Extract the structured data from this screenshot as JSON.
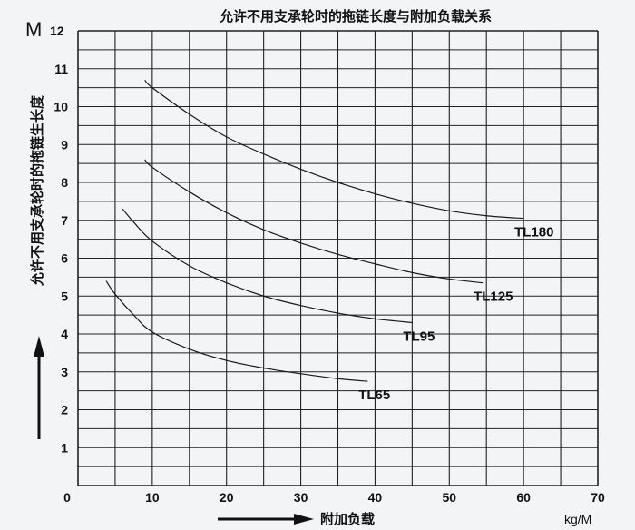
{
  "chart_data": {
    "type": "line",
    "title": "允许不用支承轮时的拖链长度与附加负载关系",
    "xlabel": "附加负载",
    "ylabel": "允许不用支承轮时的拖链生长度",
    "x_unit": "kg/M",
    "y_unit": "M",
    "xlim": [
      0,
      70
    ],
    "ylim": [
      0,
      12
    ],
    "x_ticks": [
      0,
      10,
      20,
      30,
      40,
      50,
      60,
      70
    ],
    "y_ticks": [
      1,
      2,
      3,
      4,
      5,
      6,
      7,
      8,
      9,
      10,
      11,
      12
    ],
    "grid": true,
    "series": [
      {
        "name": "TL65",
        "points": [
          [
            3.8,
            5.4
          ],
          [
            5,
            5.05
          ],
          [
            7.5,
            4.5
          ],
          [
            10,
            4.05
          ],
          [
            15,
            3.6
          ],
          [
            20,
            3.3
          ],
          [
            25,
            3.1
          ],
          [
            30,
            2.95
          ],
          [
            35,
            2.82
          ],
          [
            39,
            2.75
          ]
        ]
      },
      {
        "name": "TL95",
        "points": [
          [
            6,
            7.3
          ],
          [
            7.5,
            6.95
          ],
          [
            10,
            6.45
          ],
          [
            15,
            5.8
          ],
          [
            20,
            5.35
          ],
          [
            25,
            5.0
          ],
          [
            30,
            4.75
          ],
          [
            35,
            4.55
          ],
          [
            40,
            4.4
          ],
          [
            45,
            4.3
          ]
        ]
      },
      {
        "name": "TL125",
        "points": [
          [
            9,
            8.6
          ],
          [
            10,
            8.4
          ],
          [
            15,
            7.75
          ],
          [
            20,
            7.2
          ],
          [
            25,
            6.75
          ],
          [
            30,
            6.4
          ],
          [
            35,
            6.1
          ],
          [
            40,
            5.85
          ],
          [
            45,
            5.62
          ],
          [
            50,
            5.45
          ],
          [
            54.5,
            5.35
          ]
        ]
      },
      {
        "name": "TL180",
        "points": [
          [
            9,
            10.7
          ],
          [
            10,
            10.5
          ],
          [
            15,
            9.8
          ],
          [
            20,
            9.2
          ],
          [
            25,
            8.75
          ],
          [
            30,
            8.35
          ],
          [
            35,
            8.0
          ],
          [
            40,
            7.7
          ],
          [
            45,
            7.45
          ],
          [
            50,
            7.25
          ],
          [
            55,
            7.12
          ],
          [
            60,
            7.05
          ]
        ]
      }
    ]
  }
}
